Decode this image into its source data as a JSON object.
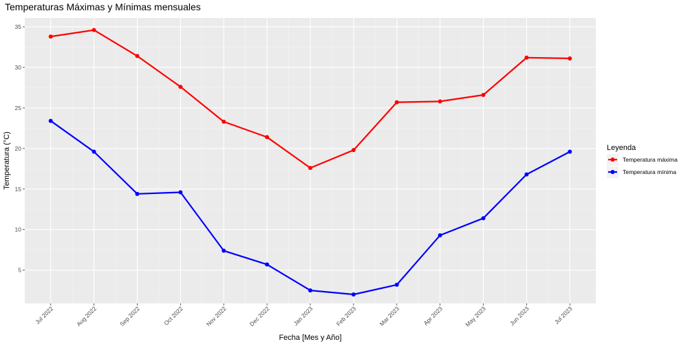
{
  "chart_data": {
    "type": "line",
    "title": "Temperaturas Máximas y Mínimas mensuales",
    "xlabel": "Fecha [Mes y Año]",
    "ylabel": "Temperatura (°C)",
    "categories": [
      "Jul 2022",
      "Aug 2022",
      "Sep 2022",
      "Oct 2022",
      "Nov 2022",
      "Dec 2022",
      "Jan 2023",
      "Feb 2023",
      "Mar 2023",
      "Apr 2023",
      "May 2023",
      "Jun 2023",
      "Jul 2023"
    ],
    "ylim": [
      0.9,
      36.1
    ],
    "yticks": [
      5,
      10,
      15,
      20,
      25,
      30,
      35
    ],
    "grid": true,
    "legend": {
      "title": "Leyenda",
      "position": "right"
    },
    "series": [
      {
        "name": "Temperatura máxima",
        "color": "#ff0000",
        "values": [
          33.8,
          34.6,
          31.4,
          27.6,
          23.3,
          21.4,
          17.6,
          19.8,
          25.7,
          25.8,
          26.6,
          31.2,
          31.1
        ]
      },
      {
        "name": "Temperatura mínima",
        "color": "#0000ff",
        "values": [
          23.4,
          19.6,
          14.4,
          14.6,
          7.4,
          5.7,
          2.5,
          2.0,
          3.2,
          9.3,
          11.4,
          16.8,
          19.6
        ]
      }
    ]
  }
}
